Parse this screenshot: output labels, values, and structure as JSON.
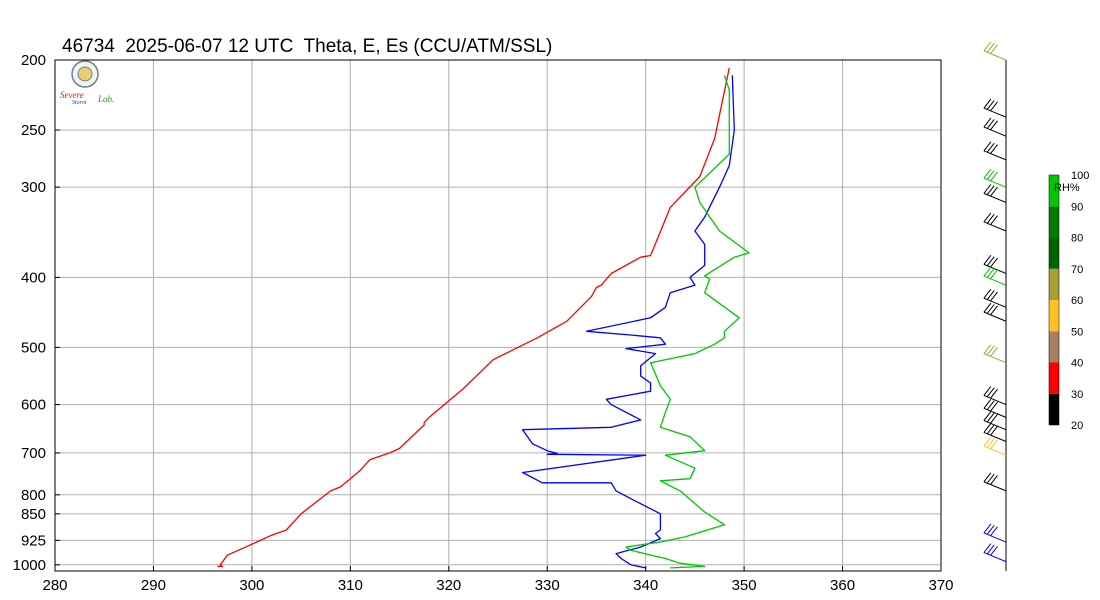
{
  "title": "46734  2025-06-07 12 UTC  Theta, E, Es (CCU/ATM/SSL)",
  "logo": {
    "text_line1": "Severe",
    "text_line2": "Storm",
    "text_line3": "Lab.",
    "seal_color": "#6a7f9a"
  },
  "colors": {
    "theta": "#ff0000",
    "thetae": "#0000ff",
    "thetaes": "#00c800",
    "grid": "#b0b0b0"
  },
  "chart_data": {
    "type": "line",
    "title": "46734  2025-06-07 12 UTC  Theta, E, Es (CCU/ATM/SSL)",
    "xlabel": "",
    "ylabel": "",
    "xlim": [
      280,
      370
    ],
    "ylim": [
      1020,
      200
    ],
    "y_scale": "log",
    "y_reversed": true,
    "grid": true,
    "x_ticks": [
      280,
      290,
      300,
      310,
      320,
      330,
      340,
      350,
      360,
      370
    ],
    "y_ticks": [
      200,
      250,
      300,
      400,
      500,
      600,
      700,
      800,
      850,
      925,
      1000
    ],
    "series": [
      {
        "name": "",
        "color": "#ff0000",
        "points": [
          [
            296.5,
            1005
          ],
          [
            297.0,
            1005
          ],
          [
            296.8,
            1000
          ],
          [
            297.5,
            970
          ],
          [
            300.5,
            930
          ],
          [
            302.0,
            910
          ],
          [
            303.5,
            895
          ],
          [
            305.0,
            850
          ],
          [
            308.0,
            790
          ],
          [
            309.0,
            780
          ],
          [
            310.5,
            750
          ],
          [
            311.0,
            740
          ],
          [
            312.0,
            715
          ],
          [
            314.0,
            700
          ],
          [
            315.0,
            690
          ],
          [
            317.5,
            640
          ],
          [
            317.5,
            635
          ],
          [
            318.0,
            625
          ],
          [
            321.5,
            570
          ],
          [
            324.5,
            520
          ],
          [
            329.0,
            485
          ],
          [
            332.0,
            460
          ],
          [
            334.5,
            425
          ],
          [
            335.0,
            413
          ],
          [
            335.5,
            410
          ],
          [
            336.5,
            395
          ],
          [
            339.5,
            375
          ],
          [
            340.5,
            373
          ],
          [
            342.5,
            320
          ],
          [
            345.5,
            290
          ],
          [
            347.0,
            257
          ],
          [
            348.5,
            205
          ]
        ]
      },
      {
        "name": "",
        "color": "#0000ff",
        "points": [
          [
            340.0,
            1010
          ],
          [
            338.5,
            1000
          ],
          [
            337.5,
            980
          ],
          [
            337.0,
            965
          ],
          [
            339.5,
            945
          ],
          [
            341.5,
            920
          ],
          [
            341.0,
            905
          ],
          [
            341.5,
            895
          ],
          [
            341.5,
            850
          ],
          [
            338.5,
            810
          ],
          [
            337.0,
            790
          ],
          [
            336.5,
            770
          ],
          [
            329.5,
            770
          ],
          [
            327.5,
            745
          ],
          [
            340.0,
            705
          ],
          [
            330.0,
            703
          ],
          [
            331.0,
            701
          ],
          [
            330.0,
            695
          ],
          [
            328.5,
            680
          ],
          [
            327.5,
            650
          ],
          [
            336.5,
            645
          ],
          [
            339.5,
            630
          ],
          [
            336.5,
            600
          ],
          [
            336.0,
            590
          ],
          [
            340.5,
            575
          ],
          [
            340.5,
            560
          ],
          [
            339.5,
            548
          ],
          [
            339.5,
            530
          ],
          [
            341.0,
            510
          ],
          [
            338.0,
            502
          ],
          [
            342.0,
            495
          ],
          [
            341.5,
            485
          ],
          [
            338.0,
            480
          ],
          [
            334.0,
            475
          ],
          [
            340.5,
            455
          ],
          [
            342.0,
            440
          ],
          [
            342.5,
            420
          ],
          [
            345.0,
            410
          ],
          [
            344.5,
            400
          ],
          [
            346.0,
            385
          ],
          [
            346.0,
            360
          ],
          [
            345.0,
            345
          ],
          [
            346.0,
            330
          ],
          [
            347.5,
            300
          ],
          [
            348.0,
            290
          ],
          [
            348.5,
            280
          ],
          [
            349.0,
            250
          ],
          [
            348.8,
            210
          ]
        ]
      },
      {
        "name": "",
        "color": "#00c800",
        "points": [
          [
            342.5,
            1010
          ],
          [
            346.0,
            1005
          ],
          [
            343.5,
            995
          ],
          [
            342.0,
            980
          ],
          [
            338.5,
            955
          ],
          [
            338.0,
            945
          ],
          [
            341.5,
            930
          ],
          [
            344.0,
            915
          ],
          [
            348.0,
            880
          ],
          [
            346.0,
            845
          ],
          [
            343.5,
            790
          ],
          [
            341.5,
            765
          ],
          [
            344.5,
            760
          ],
          [
            345.0,
            735
          ],
          [
            342.0,
            705
          ],
          [
            346.0,
            695
          ],
          [
            344.5,
            665
          ],
          [
            341.5,
            645
          ],
          [
            342.0,
            615
          ],
          [
            342.5,
            590
          ],
          [
            341.5,
            565
          ],
          [
            340.5,
            525
          ],
          [
            345.0,
            510
          ],
          [
            347.0,
            495
          ],
          [
            348.0,
            485
          ],
          [
            348.0,
            475
          ],
          [
            349.5,
            455
          ],
          [
            346.0,
            420
          ],
          [
            346.5,
            402
          ],
          [
            346.0,
            398
          ],
          [
            349.0,
            375
          ],
          [
            350.5,
            370
          ],
          [
            347.5,
            345
          ],
          [
            345.5,
            315
          ],
          [
            345.0,
            300
          ],
          [
            348.5,
            270
          ],
          [
            348.5,
            220
          ],
          [
            348.0,
            210
          ]
        ]
      }
    ],
    "colorbar": {
      "label": "RH%",
      "ticks": [
        20,
        30,
        40,
        50,
        60,
        70,
        80,
        90,
        100
      ],
      "colors": [
        "#000000",
        "#ff0000",
        "#a97f5f",
        "#ffc125",
        "#a5a032",
        "#006400",
        "#007c00",
        "#00c800",
        "#0000ff"
      ]
    },
    "wind_barbs": [
      {
        "p": 200,
        "color": "#a5a032"
      },
      {
        "p": 240,
        "color": "#000000"
      },
      {
        "p": 255,
        "color": "#000000"
      },
      {
        "p": 275,
        "color": "#000000"
      },
      {
        "p": 300,
        "color": "#00c800"
      },
      {
        "p": 315,
        "color": "#000000"
      },
      {
        "p": 345,
        "color": "#000000"
      },
      {
        "p": 395,
        "color": "#000000"
      },
      {
        "p": 410,
        "color": "#00c800"
      },
      {
        "p": 440,
        "color": "#000000"
      },
      {
        "p": 460,
        "color": "#000000"
      },
      {
        "p": 525,
        "color": "#a5a032"
      },
      {
        "p": 600,
        "color": "#000000"
      },
      {
        "p": 625,
        "color": "#000000"
      },
      {
        "p": 650,
        "color": "#000000"
      },
      {
        "p": 675,
        "color": "#000000"
      },
      {
        "p": 705,
        "color": "#ffc125"
      },
      {
        "p": 790,
        "color": "#000000"
      },
      {
        "p": 930,
        "color": "#0000ff"
      },
      {
        "p": 990,
        "color": "#0000ff"
      }
    ]
  }
}
